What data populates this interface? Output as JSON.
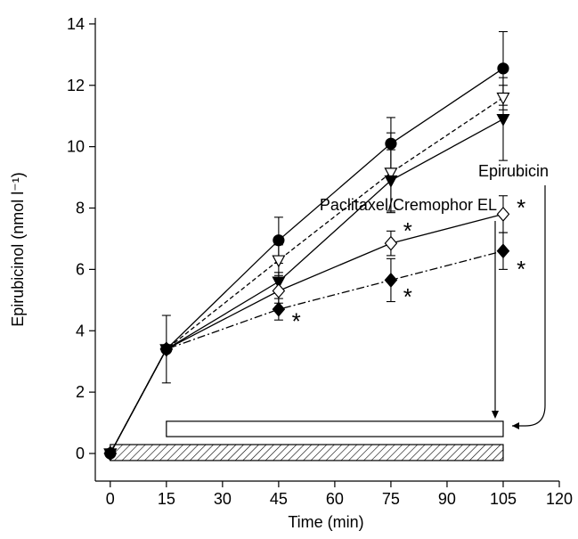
{
  "chart_data": {
    "type": "line",
    "x": [
      0,
      15,
      45,
      75,
      105
    ],
    "series": [
      {
        "color": "#000000",
        "marker": "circle-filled",
        "line": "solid",
        "values": [
          0,
          3.4,
          6.95,
          10.1,
          12.55
        ],
        "errors": [
          null,
          1.1,
          0.75,
          0.85,
          1.2
        ]
      },
      {
        "color": "#000000",
        "marker": "triangle-open",
        "line": "dash",
        "values": [
          0,
          3.4,
          6.3,
          9.15,
          11.6
        ],
        "errors": [
          null,
          null,
          0.5,
          1.3,
          0.4
        ]
      },
      {
        "color": "#000000",
        "marker": "triangle-filled",
        "line": "solid",
        "values": [
          0,
          3.4,
          5.6,
          8.9,
          10.9
        ],
        "errors": [
          null,
          null,
          0.3,
          1.0,
          1.35
        ]
      },
      {
        "color": "#000000",
        "marker": "diamond-open",
        "line": "solid",
        "values": [
          0,
          3.4,
          5.3,
          6.85,
          7.8
        ],
        "errors": [
          null,
          null,
          0.4,
          0.4,
          0.6
        ]
      },
      {
        "color": "#000000",
        "marker": "diamond-filled",
        "line": "dashdot",
        "values": [
          0,
          3.4,
          4.7,
          5.65,
          6.6
        ],
        "errors": [
          null,
          null,
          0.35,
          0.7,
          0.6
        ]
      }
    ],
    "xlim": [
      -4,
      120
    ],
    "xticks": [
      0,
      15,
      30,
      45,
      60,
      75,
      90,
      105,
      120
    ],
    "ylim": [
      -0.9,
      14.2
    ],
    "yticks": [
      0,
      2,
      4,
      6,
      8,
      10,
      12,
      14
    ],
    "xlabel": "Time (min)",
    "ylabel": "Epirubicinol (nmol l⁻¹)",
    "annotations": [
      {
        "text": "*",
        "x": 49.7,
        "y": 4.4
      },
      {
        "text": "*",
        "x": 79.5,
        "y": 5.2
      },
      {
        "text": "*",
        "x": 79.5,
        "y": 7.35
      },
      {
        "text": "*",
        "x": 109.8,
        "y": 8.1
      },
      {
        "text": "*",
        "x": 109.8,
        "y": 6.1
      }
    ],
    "bars": [
      {
        "label": "Epirubicin",
        "start": 0,
        "end": 105,
        "fill": "hatch"
      },
      {
        "label": "Paclitaxel/Cremophor EL",
        "start": 15,
        "end": 105,
        "fill": "open"
      }
    ]
  }
}
